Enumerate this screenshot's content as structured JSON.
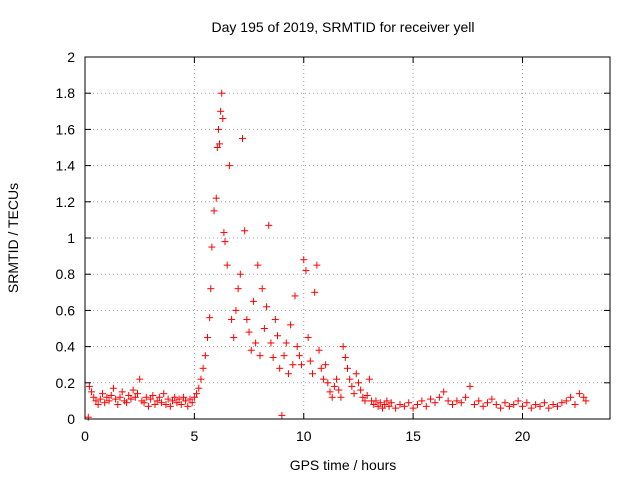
{
  "chart_data": {
    "type": "scatter",
    "title": "Day 195 of 2019, SRMTID for receiver yell",
    "xlabel": "GPS time / hours",
    "ylabel": "SRMTID / TECUs",
    "xlim": [
      0,
      24
    ],
    "ylim": [
      0,
      2
    ],
    "xticks": [
      0,
      5,
      10,
      15,
      20
    ],
    "xtick_labels": [
      "0",
      "5",
      "10",
      "15",
      "20"
    ],
    "yticks": [
      0,
      0.2,
      0.4,
      0.6,
      0.8,
      1.0,
      1.2,
      1.4,
      1.6,
      1.8,
      2.0
    ],
    "ytick_labels": [
      "0",
      "0.2",
      "0.4",
      "0.6",
      "0.8",
      "1",
      "1.2",
      "1.4",
      "1.6",
      "1.8",
      "2"
    ],
    "grid": true,
    "marker": "+",
    "color": "#ff0000",
    "series": [
      {
        "name": "SRMTID",
        "points": [
          [
            0.15,
            0.01
          ],
          [
            0.2,
            0.18
          ],
          [
            0.3,
            0.15
          ],
          [
            0.4,
            0.12
          ],
          [
            0.5,
            0.1
          ],
          [
            0.6,
            0.08
          ],
          [
            0.7,
            0.11
          ],
          [
            0.8,
            0.14
          ],
          [
            0.9,
            0.09
          ],
          [
            1.0,
            0.12
          ],
          [
            1.1,
            0.1
          ],
          [
            1.2,
            0.13
          ],
          [
            1.3,
            0.17
          ],
          [
            1.4,
            0.11
          ],
          [
            1.5,
            0.08
          ],
          [
            1.6,
            0.12
          ],
          [
            1.7,
            0.15
          ],
          [
            1.8,
            0.1
          ],
          [
            1.9,
            0.09
          ],
          [
            2.0,
            0.13
          ],
          [
            2.1,
            0.11
          ],
          [
            2.2,
            0.16
          ],
          [
            2.3,
            0.12
          ],
          [
            2.4,
            0.14
          ],
          [
            2.5,
            0.22
          ],
          [
            2.6,
            0.1
          ],
          [
            2.7,
            0.09
          ],
          [
            2.8,
            0.12
          ],
          [
            2.9,
            0.07
          ],
          [
            3.0,
            0.11
          ],
          [
            3.1,
            0.13
          ],
          [
            3.2,
            0.08
          ],
          [
            3.3,
            0.1
          ],
          [
            3.4,
            0.12
          ],
          [
            3.5,
            0.09
          ],
          [
            3.6,
            0.14
          ],
          [
            3.7,
            0.08
          ],
          [
            3.8,
            0.11
          ],
          [
            3.9,
            0.07
          ],
          [
            4.0,
            0.1
          ],
          [
            4.1,
            0.12
          ],
          [
            4.2,
            0.09
          ],
          [
            4.3,
            0.11
          ],
          [
            4.4,
            0.08
          ],
          [
            4.5,
            0.12
          ],
          [
            4.6,
            0.1
          ],
          [
            4.7,
            0.07
          ],
          [
            4.8,
            0.11
          ],
          [
            4.9,
            0.09
          ],
          [
            5.0,
            0.12
          ],
          [
            5.1,
            0.14
          ],
          [
            5.2,
            0.17
          ],
          [
            5.3,
            0.22
          ],
          [
            5.4,
            0.28
          ],
          [
            5.5,
            0.35
          ],
          [
            5.6,
            0.45
          ],
          [
            5.7,
            0.56
          ],
          [
            5.75,
            0.72
          ],
          [
            5.8,
            0.95
          ],
          [
            5.9,
            1.15
          ],
          [
            6.0,
            1.22
          ],
          [
            6.05,
            1.5
          ],
          [
            6.1,
            1.6
          ],
          [
            6.15,
            1.52
          ],
          [
            6.2,
            1.7
          ],
          [
            6.25,
            1.8
          ],
          [
            6.3,
            1.66
          ],
          [
            6.35,
            1.03
          ],
          [
            6.4,
            0.98
          ],
          [
            6.5,
            0.85
          ],
          [
            6.6,
            1.4
          ],
          [
            6.7,
            0.55
          ],
          [
            6.8,
            0.45
          ],
          [
            6.9,
            0.6
          ],
          [
            7.0,
            0.72
          ],
          [
            7.1,
            0.8
          ],
          [
            7.2,
            1.55
          ],
          [
            7.3,
            1.04
          ],
          [
            7.4,
            0.55
          ],
          [
            7.5,
            0.48
          ],
          [
            7.6,
            0.38
          ],
          [
            7.7,
            0.65
          ],
          [
            7.8,
            0.42
          ],
          [
            7.9,
            0.85
          ],
          [
            8.0,
            0.35
          ],
          [
            8.1,
            0.72
          ],
          [
            8.2,
            0.5
          ],
          [
            8.3,
            0.62
          ],
          [
            8.4,
            1.07
          ],
          [
            8.5,
            0.42
          ],
          [
            8.6,
            0.34
          ],
          [
            8.7,
            0.55
          ],
          [
            8.8,
            0.46
          ],
          [
            8.9,
            0.28
          ],
          [
            9.0,
            0.02
          ],
          [
            9.1,
            0.35
          ],
          [
            9.2,
            0.42
          ],
          [
            9.3,
            0.25
          ],
          [
            9.4,
            0.52
          ],
          [
            9.5,
            0.3
          ],
          [
            9.6,
            0.68
          ],
          [
            9.7,
            0.4
          ],
          [
            9.8,
            0.35
          ],
          [
            9.9,
            0.3
          ],
          [
            10.0,
            0.88
          ],
          [
            10.1,
            0.82
          ],
          [
            10.2,
            0.45
          ],
          [
            10.3,
            0.32
          ],
          [
            10.4,
            0.25
          ],
          [
            10.5,
            0.7
          ],
          [
            10.6,
            0.85
          ],
          [
            10.7,
            0.38
          ],
          [
            10.8,
            0.28
          ],
          [
            10.9,
            0.22
          ],
          [
            11.0,
            0.3
          ],
          [
            11.1,
            0.2
          ],
          [
            11.2,
            0.15
          ],
          [
            11.3,
            0.12
          ],
          [
            11.4,
            0.18
          ],
          [
            11.5,
            0.22
          ],
          [
            11.6,
            0.16
          ],
          [
            11.7,
            0.12
          ],
          [
            11.8,
            0.4
          ],
          [
            11.9,
            0.34
          ],
          [
            12.0,
            0.28
          ],
          [
            12.1,
            0.22
          ],
          [
            12.2,
            0.18
          ],
          [
            12.3,
            0.14
          ],
          [
            12.4,
            0.25
          ],
          [
            12.5,
            0.2
          ],
          [
            12.6,
            0.16
          ],
          [
            12.7,
            0.12
          ],
          [
            12.8,
            0.1
          ],
          [
            12.9,
            0.13
          ],
          [
            13.0,
            0.22
          ],
          [
            13.1,
            0.1
          ],
          [
            13.2,
            0.08
          ],
          [
            13.3,
            0.1
          ],
          [
            13.4,
            0.07
          ],
          [
            13.5,
            0.09
          ],
          [
            13.6,
            0.06
          ],
          [
            13.7,
            0.08
          ],
          [
            13.8,
            0.1
          ],
          [
            13.9,
            0.07
          ],
          [
            14.0,
            0.09
          ],
          [
            14.2,
            0.06
          ],
          [
            14.4,
            0.08
          ],
          [
            14.6,
            0.07
          ],
          [
            14.8,
            0.09
          ],
          [
            15.0,
            0.06
          ],
          [
            15.2,
            0.08
          ],
          [
            15.4,
            0.1
          ],
          [
            15.6,
            0.07
          ],
          [
            15.8,
            0.11
          ],
          [
            16.0,
            0.09
          ],
          [
            16.2,
            0.12
          ],
          [
            16.4,
            0.15
          ],
          [
            16.6,
            0.1
          ],
          [
            16.8,
            0.08
          ],
          [
            17.0,
            0.1
          ],
          [
            17.2,
            0.09
          ],
          [
            17.4,
            0.12
          ],
          [
            17.6,
            0.18
          ],
          [
            17.8,
            0.08
          ],
          [
            18.0,
            0.1
          ],
          [
            18.2,
            0.07
          ],
          [
            18.4,
            0.09
          ],
          [
            18.6,
            0.11
          ],
          [
            18.8,
            0.08
          ],
          [
            19.0,
            0.06
          ],
          [
            19.2,
            0.09
          ],
          [
            19.4,
            0.07
          ],
          [
            19.6,
            0.08
          ],
          [
            19.8,
            0.1
          ],
          [
            20.0,
            0.07
          ],
          [
            20.2,
            0.09
          ],
          [
            20.4,
            0.06
          ],
          [
            20.6,
            0.08
          ],
          [
            20.8,
            0.07
          ],
          [
            21.0,
            0.09
          ],
          [
            21.2,
            0.06
          ],
          [
            21.4,
            0.08
          ],
          [
            21.6,
            0.07
          ],
          [
            21.8,
            0.09
          ],
          [
            22.0,
            0.1
          ],
          [
            22.2,
            0.12
          ],
          [
            22.4,
            0.08
          ],
          [
            22.6,
            0.14
          ],
          [
            22.8,
            0.12
          ],
          [
            22.9,
            0.1
          ]
        ]
      }
    ]
  }
}
